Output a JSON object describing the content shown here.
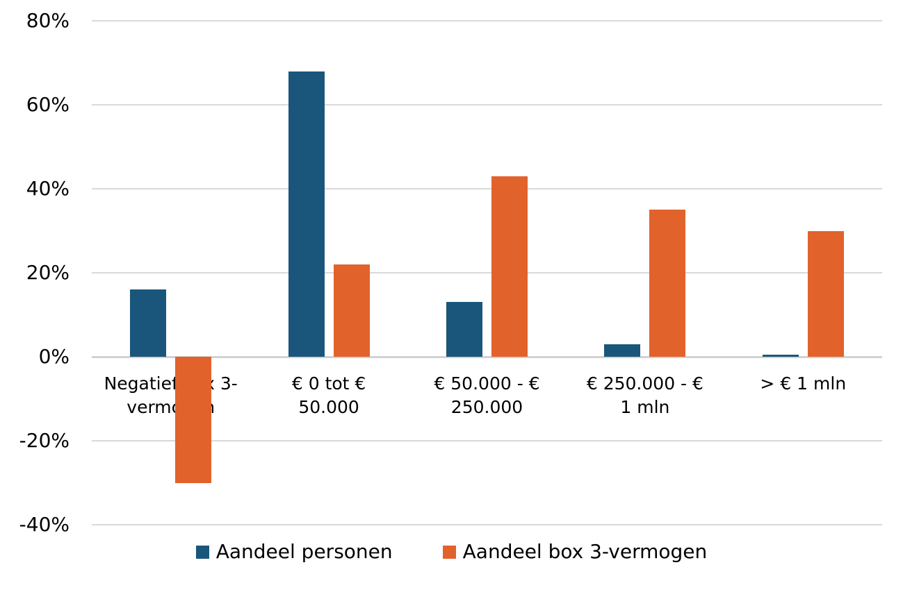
{
  "chart_data": {
    "type": "bar",
    "categories": [
      "Negatief box 3-\nvermogen",
      "€ 0 tot €\n50.000",
      "€ 50.000 - €\n250.000",
      "€ 250.000 - €\n1 mln",
      "> € 1 mln"
    ],
    "series": [
      {
        "name": "Aandeel personen",
        "color": "#1a567b",
        "values": [
          16,
          68,
          13,
          3,
          0.5
        ]
      },
      {
        "name": "Aandeel box 3-vermogen",
        "color": "#e2622b",
        "values": [
          -30,
          22,
          43,
          35,
          30
        ]
      }
    ],
    "title": "",
    "xlabel": "",
    "ylabel": "",
    "ylim": [
      -40,
      80
    ],
    "yticks": [
      {
        "label": "80%",
        "value": 80
      },
      {
        "label": "60%",
        "value": 60
      },
      {
        "label": "40%",
        "value": 40
      },
      {
        "label": "20%",
        "value": 20
      },
      {
        "label": "0%",
        "value": 0
      },
      {
        "label": "-20%",
        "value": -20
      },
      {
        "label": "-40%",
        "value": -40
      }
    ],
    "grid": true,
    "legend_position": "bottom",
    "colors": {
      "gridline": "#d9d9d9",
      "zero_line": "#d2d2d2",
      "text": "#000000",
      "background": "#ffffff"
    }
  }
}
